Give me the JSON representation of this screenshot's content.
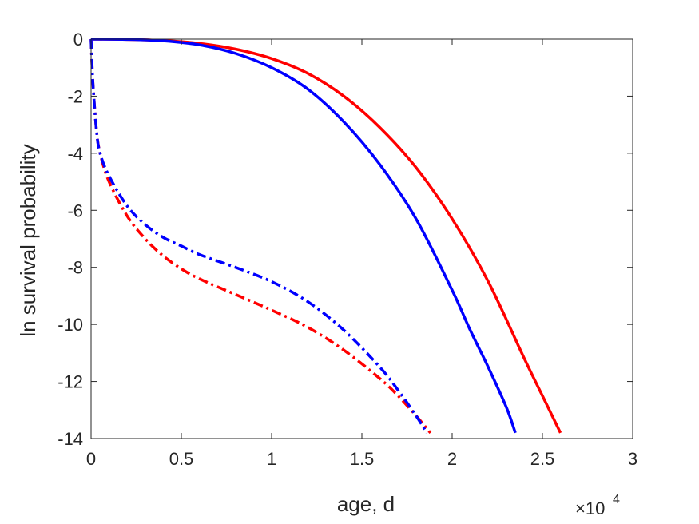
{
  "chart_data": {
    "type": "line",
    "title": "",
    "xlabel": "age, d",
    "ylabel": "ln survival probability",
    "x_scale_factor_label": {
      "base": "×10",
      "exponent": "4"
    },
    "xlim": [
      0,
      30000
    ],
    "ylim": [
      -14,
      0
    ],
    "xticks": [
      0,
      5000,
      10000,
      15000,
      20000,
      25000,
      30000
    ],
    "xtick_labels": [
      "0",
      "0.5",
      "1",
      "1.5",
      "2",
      "2.5",
      "3"
    ],
    "yticks": [
      0,
      -2,
      -4,
      -6,
      -8,
      -10,
      -12,
      -14
    ],
    "ytick_labels": [
      "0",
      "-2",
      "-4",
      "-6",
      "-8",
      "-10",
      "-12",
      "-14"
    ],
    "grid": false,
    "legend": "none",
    "series": [
      {
        "color": "#ff0000",
        "style": "solid",
        "x": [
          0,
          2000,
          4000,
          6000,
          8000,
          10000,
          12000,
          14000,
          16000,
          18000,
          20000,
          22000,
          24000,
          25000,
          26000
        ],
        "y": [
          0,
          -0.01,
          -0.05,
          -0.15,
          -0.35,
          -0.68,
          -1.2,
          -2.0,
          -3.1,
          -4.5,
          -6.3,
          -8.5,
          -11.2,
          -12.5,
          -13.8
        ]
      },
      {
        "color": "#0000ff",
        "style": "solid",
        "x": [
          0,
          2000,
          4000,
          6000,
          8000,
          10000,
          12000,
          14000,
          16000,
          18000,
          20000,
          21000,
          22000,
          23000,
          23500
        ],
        "y": [
          0,
          -0.01,
          -0.06,
          -0.2,
          -0.5,
          -1.0,
          -1.75,
          -2.9,
          -4.4,
          -6.3,
          -8.8,
          -10.2,
          -11.5,
          -12.9,
          -13.8
        ]
      },
      {
        "color": "#ff0000",
        "style": "dashdot",
        "x": [
          0,
          100,
          300,
          500,
          1000,
          2000,
          3000,
          4000,
          5000,
          6000,
          8000,
          10000,
          12000,
          14000,
          16000,
          17000,
          18000,
          18800
        ],
        "y": [
          0,
          -1.5,
          -3.2,
          -4.0,
          -5.0,
          -6.2,
          -7.0,
          -7.6,
          -8.05,
          -8.4,
          -8.95,
          -9.5,
          -10.1,
          -10.9,
          -11.9,
          -12.5,
          -13.2,
          -13.8
        ]
      },
      {
        "color": "#0000ff",
        "style": "dashdot",
        "x": [
          0,
          100,
          300,
          500,
          1000,
          2000,
          3000,
          4000,
          5000,
          6000,
          8000,
          10000,
          12000,
          14000,
          16000,
          17000,
          18000,
          18600
        ],
        "y": [
          0,
          -1.5,
          -3.2,
          -4.0,
          -4.8,
          -5.85,
          -6.5,
          -6.95,
          -7.25,
          -7.55,
          -8.0,
          -8.5,
          -9.2,
          -10.2,
          -11.5,
          -12.3,
          -13.2,
          -13.8
        ]
      }
    ]
  }
}
